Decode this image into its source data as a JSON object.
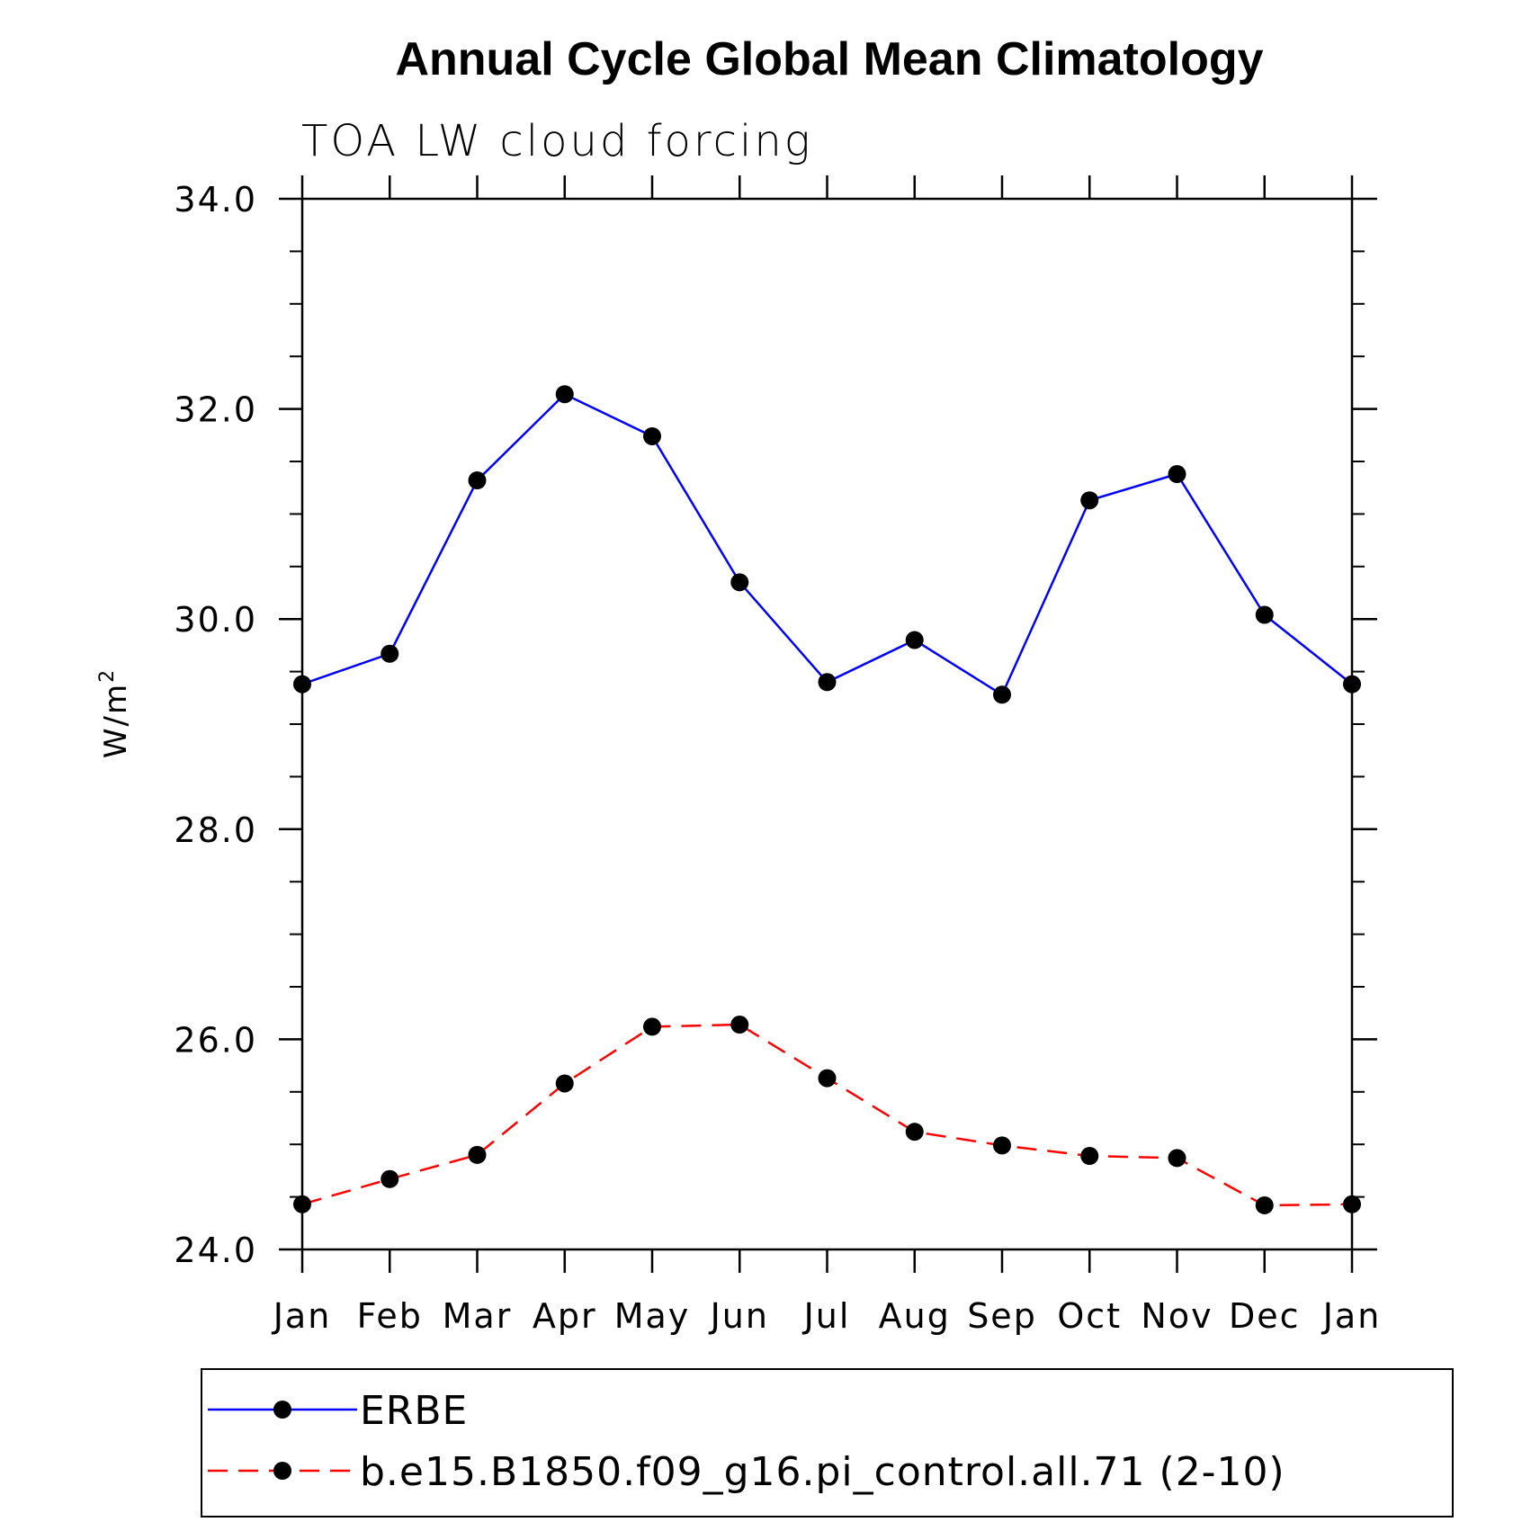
{
  "chart_data": {
    "type": "line",
    "title": "Annual Cycle Global Mean Climatology",
    "subtitle": "TOA LW cloud forcing",
    "ylabel_base": "W/m",
    "ylabel_sup": "2",
    "xlabel": "",
    "categories": [
      "Jan",
      "Feb",
      "Mar",
      "Apr",
      "May",
      "Jun",
      "Jul",
      "Aug",
      "Sep",
      "Oct",
      "Nov",
      "Dec",
      "Jan"
    ],
    "ylim": [
      24.0,
      34.0
    ],
    "yticks": [
      "24.0",
      "26.0",
      "28.0",
      "30.0",
      "32.0",
      "34.0"
    ],
    "y_minor_step": 0.5,
    "grid": false,
    "legend_position": "bottom",
    "series": [
      {
        "name": "ERBE",
        "color": "#0000ff",
        "dash": "solid",
        "marker": "filled-circle",
        "values": [
          29.38,
          29.67,
          31.32,
          32.14,
          31.74,
          30.35,
          29.4,
          29.8,
          29.28,
          31.13,
          31.38,
          30.04,
          29.38
        ]
      },
      {
        "name": "b.e15.B1850.f09_g16.pi_control.all.71 (2-10)",
        "color": "#ff0000",
        "dash": "dashed",
        "marker": "filled-circle",
        "values": [
          24.43,
          24.67,
          24.9,
          25.58,
          26.12,
          26.14,
          25.63,
          25.12,
          24.99,
          24.89,
          24.87,
          24.42,
          24.43
        ]
      }
    ]
  }
}
